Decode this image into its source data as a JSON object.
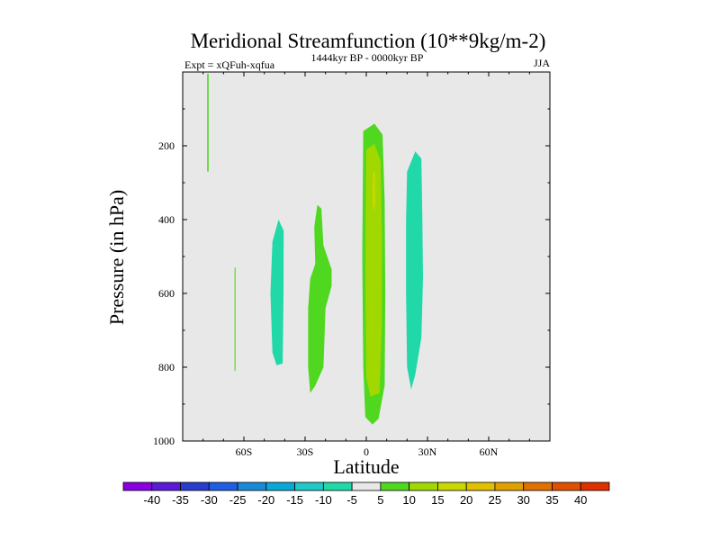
{
  "chart_data": {
    "type": "contour",
    "title": "Meridional Streamfunction (10**9kg/m-2)",
    "left_string": "Expt = xQFuh-xqfua",
    "center_string": "1444kyr BP - 0000kyr BP",
    "right_string": "JJA",
    "xlabel": "Latitude",
    "ylabel": "Pressure (in hPa)",
    "xlim": [
      -90,
      90
    ],
    "ylim": [
      0,
      1000
    ],
    "y_reversed": true,
    "xticks": [
      {
        "value": -60,
        "label": "60S"
      },
      {
        "value": -30,
        "label": "30S"
      },
      {
        "value": 0,
        "label": "0"
      },
      {
        "value": 30,
        "label": "30N"
      },
      {
        "value": 60,
        "label": "60N"
      }
    ],
    "yticks": [
      {
        "value": 200,
        "label": "200"
      },
      {
        "value": 400,
        "label": "400"
      },
      {
        "value": 600,
        "label": "600"
      },
      {
        "value": 800,
        "label": "800"
      },
      {
        "value": 1000,
        "label": "1000"
      }
    ],
    "background_color": "#e8e8e8",
    "colorbar": {
      "levels": [
        "-40",
        "-35",
        "-30",
        "-25",
        "-20",
        "-15",
        "-10",
        "-5",
        "5",
        "10",
        "15",
        "20",
        "25",
        "30",
        "35",
        "40"
      ],
      "colors": [
        "#8a00e0",
        "#5a1ad6",
        "#2a3ccc",
        "#1f5ee0",
        "#1a8ad8",
        "#0aa8d8",
        "#20c8c8",
        "#20d8a8",
        "#e8e8e8",
        "#50d820",
        "#a0d800",
        "#c8d800",
        "#e0c000",
        "#e0a000",
        "#e07000",
        "#e05000",
        "#e03000"
      ]
    },
    "regions": [
      {
        "value": "5 to 10",
        "color": "#50d820",
        "points": [
          [
            -78,
            5
          ],
          [
            -77.3,
            5
          ],
          [
            -77.3,
            270
          ],
          [
            -78,
            270
          ]
        ]
      },
      {
        "value": "5 to 10",
        "color": "#50d820",
        "points": [
          [
            -64.6,
            530
          ],
          [
            -64.1,
            530
          ],
          [
            -64.1,
            810
          ],
          [
            -64.6,
            810
          ]
        ]
      },
      {
        "value": "-10 to -5",
        "color": "#20d8a8",
        "points": [
          [
            -46,
            460
          ],
          [
            -43,
            400
          ],
          [
            -40.5,
            430
          ],
          [
            -40.6,
            600
          ],
          [
            -41,
            790
          ],
          [
            -44,
            795
          ],
          [
            -46,
            760
          ],
          [
            -47,
            600
          ]
        ]
      },
      {
        "value": "5 to 10",
        "color": "#50d820",
        "points": [
          [
            -24,
            360
          ],
          [
            -22,
            370
          ],
          [
            -21,
            470
          ],
          [
            -17,
            535
          ],
          [
            -17,
            580
          ],
          [
            -20,
            640
          ],
          [
            -21,
            800
          ],
          [
            -25,
            850
          ],
          [
            -27.5,
            870
          ],
          [
            -28.5,
            800
          ],
          [
            -28.5,
            640
          ],
          [
            -27.5,
            560
          ],
          [
            -25,
            520
          ],
          [
            -25.5,
            420
          ]
        ]
      },
      {
        "value": "5 to 10",
        "color": "#50d820",
        "points": [
          [
            -1.5,
            160
          ],
          [
            4,
            140
          ],
          [
            8,
            170
          ],
          [
            9,
            350
          ],
          [
            9.3,
            600
          ],
          [
            9,
            850
          ],
          [
            6,
            940
          ],
          [
            3,
            955
          ],
          [
            -0.5,
            935
          ],
          [
            -1.5,
            800
          ],
          [
            -2,
            500
          ]
        ]
      },
      {
        "value": "10 to 15",
        "color": "#a0d800",
        "points": [
          [
            0,
            210
          ],
          [
            4,
            195
          ],
          [
            7,
            240
          ],
          [
            7.7,
            450
          ],
          [
            7.6,
            700
          ],
          [
            6.5,
            870
          ],
          [
            2,
            880
          ],
          [
            0,
            830
          ],
          [
            -0.4,
            600
          ],
          [
            -0.3,
            380
          ]
        ]
      },
      {
        "value": "15 to 20",
        "color": "#c8d800",
        "points": [
          [
            3.2,
            275
          ],
          [
            4.3,
            270
          ],
          [
            4.4,
            360
          ],
          [
            3.6,
            380
          ],
          [
            3.1,
            340
          ]
        ]
      },
      {
        "value": "-10 to -5",
        "color": "#20d8a8",
        "points": [
          [
            20,
            270
          ],
          [
            24,
            215
          ],
          [
            27,
            235
          ],
          [
            27.5,
            400
          ],
          [
            27.8,
            560
          ],
          [
            27,
            720
          ],
          [
            24,
            820
          ],
          [
            22,
            860
          ],
          [
            20,
            800
          ],
          [
            19.5,
            600
          ],
          [
            19.5,
            400
          ]
        ]
      }
    ]
  }
}
